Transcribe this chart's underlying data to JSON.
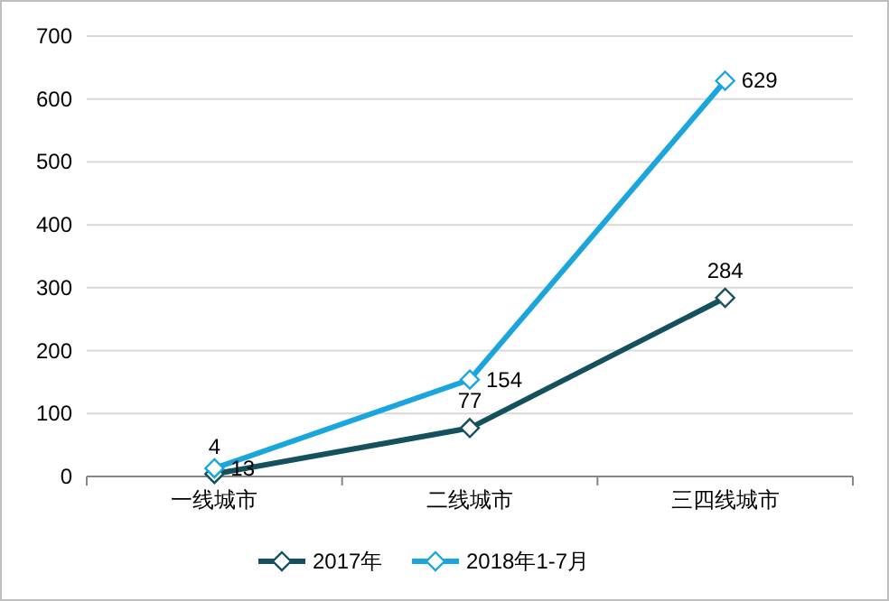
{
  "chart_data": {
    "type": "line",
    "categories": [
      "一线城市",
      "二线城市",
      "三四线城市"
    ],
    "series": [
      {
        "name": "2017年",
        "color": "#15505e",
        "values": [
          4,
          77,
          284
        ]
      },
      {
        "name": "2018年1-7月",
        "color": "#1aa6dc",
        "values": [
          13,
          154,
          629
        ]
      }
    ],
    "ylim": [
      0,
      700
    ],
    "yticks": [
      0,
      100,
      200,
      300,
      400,
      500,
      600,
      700
    ],
    "grid": "y",
    "legend": "bottom",
    "marker": "diamond",
    "line_style": "solid",
    "data_labels": true
  }
}
